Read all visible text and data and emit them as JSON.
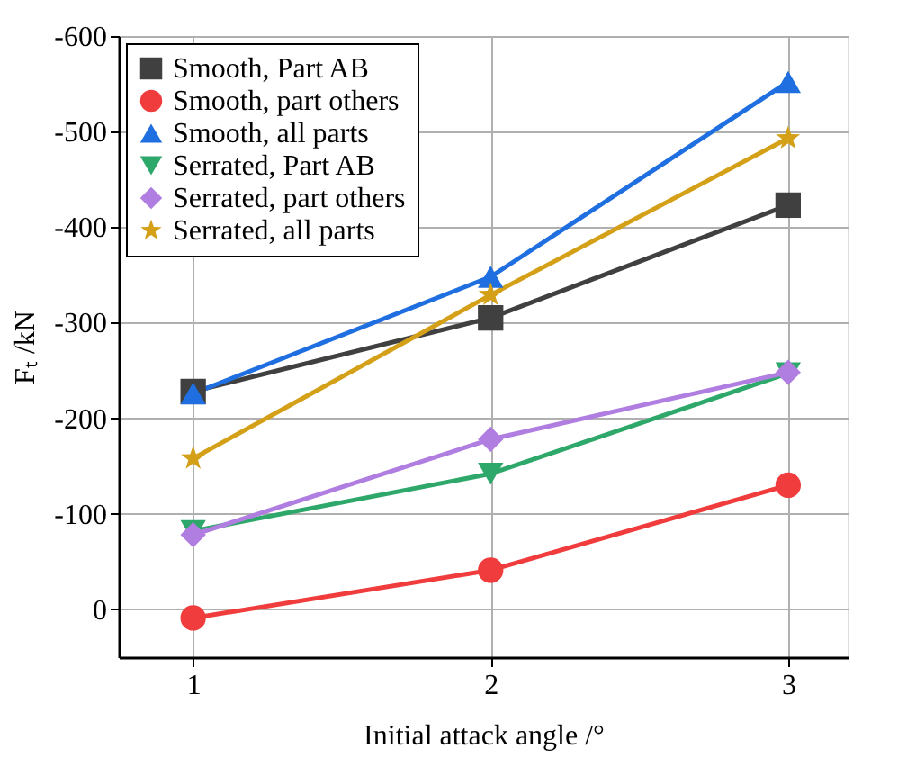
{
  "chart_data": {
    "type": "line",
    "xlabel": "Initial attack angle /°",
    "ylabel": "Fₜ /kN",
    "x": [
      1,
      2,
      3
    ],
    "xlim": [
      0.75,
      3.2
    ],
    "xticks": [
      1,
      2,
      3
    ],
    "ylim": [
      50,
      -600
    ],
    "yticks": [
      -600,
      -500,
      -400,
      -300,
      -200,
      -100,
      0
    ],
    "grid": true,
    "legend": "top left",
    "series": [
      {
        "name": "Smooth,  Part AB",
        "color": "#404040",
        "marker": "square",
        "values": [
          -228,
          -305,
          -423
        ]
      },
      {
        "name": "Smooth,  part others",
        "color": "#f03c3c",
        "marker": "circle",
        "values": [
          9,
          -41,
          -130
        ]
      },
      {
        "name": "Smooth,  all parts",
        "color": "#1f6fe0",
        "marker": "triangle",
        "values": [
          -226,
          -348,
          -552
        ]
      },
      {
        "name": "Serrated, Part AB",
        "color": "#2ea86a",
        "marker": "triangle-down",
        "values": [
          -82,
          -142,
          -247
        ]
      },
      {
        "name": "Serrated, part others",
        "color": "#b07ee0",
        "marker": "diamond",
        "values": [
          -78,
          -178,
          -248
        ]
      },
      {
        "name": "Serrated, all parts",
        "color": "#d4a017",
        "marker": "star",
        "values": [
          -158,
          -329,
          -493
        ]
      }
    ]
  }
}
